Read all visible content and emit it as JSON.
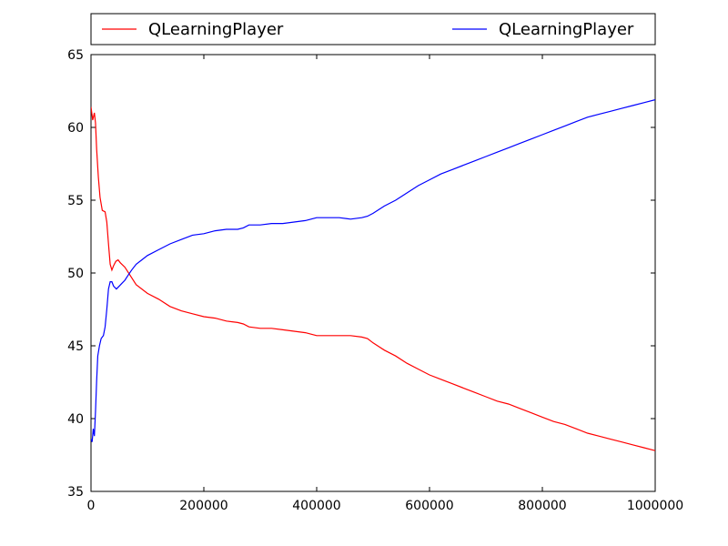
{
  "chart_data": {
    "type": "line",
    "xlim": [
      0,
      1000000
    ],
    "ylim": [
      35,
      65
    ],
    "xticks": [
      0,
      200000,
      400000,
      600000,
      800000,
      1000000
    ],
    "yticks": [
      35,
      40,
      45,
      50,
      55,
      60,
      65
    ],
    "grid": false,
    "legend_position": "top",
    "series": [
      {
        "name": "QLearningPlayer",
        "color": "#ff0000",
        "points": [
          [
            0,
            61.4
          ],
          [
            3000,
            60.5
          ],
          [
            6000,
            61.0
          ],
          [
            8000,
            60.3
          ],
          [
            10000,
            58.5
          ],
          [
            13000,
            56.6
          ],
          [
            16000,
            55.2
          ],
          [
            20000,
            54.3
          ],
          [
            25000,
            54.2
          ],
          [
            28000,
            53.5
          ],
          [
            31000,
            52.0
          ],
          [
            34000,
            50.6
          ],
          [
            37000,
            50.2
          ],
          [
            40000,
            50.5
          ],
          [
            44000,
            50.8
          ],
          [
            48000,
            50.9
          ],
          [
            52000,
            50.7
          ],
          [
            60000,
            50.4
          ],
          [
            70000,
            49.8
          ],
          [
            80000,
            49.2
          ],
          [
            100000,
            48.6
          ],
          [
            120000,
            48.2
          ],
          [
            140000,
            47.7
          ],
          [
            160000,
            47.4
          ],
          [
            180000,
            47.2
          ],
          [
            200000,
            47.0
          ],
          [
            220000,
            46.9
          ],
          [
            240000,
            46.7
          ],
          [
            260000,
            46.6
          ],
          [
            270000,
            46.5
          ],
          [
            280000,
            46.3
          ],
          [
            300000,
            46.2
          ],
          [
            320000,
            46.2
          ],
          [
            340000,
            46.1
          ],
          [
            360000,
            46.0
          ],
          [
            380000,
            45.9
          ],
          [
            390000,
            45.8
          ],
          [
            400000,
            45.7
          ],
          [
            420000,
            45.7
          ],
          [
            440000,
            45.7
          ],
          [
            460000,
            45.7
          ],
          [
            480000,
            45.6
          ],
          [
            490000,
            45.5
          ],
          [
            500000,
            45.2
          ],
          [
            520000,
            44.7
          ],
          [
            540000,
            44.3
          ],
          [
            560000,
            43.8
          ],
          [
            580000,
            43.4
          ],
          [
            600000,
            43.0
          ],
          [
            620000,
            42.7
          ],
          [
            640000,
            42.4
          ],
          [
            660000,
            42.1
          ],
          [
            680000,
            41.8
          ],
          [
            700000,
            41.5
          ],
          [
            720000,
            41.2
          ],
          [
            740000,
            41.0
          ],
          [
            760000,
            40.7
          ],
          [
            780000,
            40.4
          ],
          [
            800000,
            40.1
          ],
          [
            820000,
            39.8
          ],
          [
            840000,
            39.6
          ],
          [
            860000,
            39.3
          ],
          [
            880000,
            39.0
          ],
          [
            900000,
            38.8
          ],
          [
            920000,
            38.6
          ],
          [
            940000,
            38.4
          ],
          [
            960000,
            38.2
          ],
          [
            980000,
            38.0
          ],
          [
            1000000,
            37.8
          ]
        ]
      },
      {
        "name": "QLearningPlayer",
        "color": "#0000ff",
        "points": [
          [
            0,
            38.6
          ],
          [
            2000,
            38.4
          ],
          [
            4000,
            39.3
          ],
          [
            6000,
            38.8
          ],
          [
            8000,
            40.5
          ],
          [
            10000,
            42.6
          ],
          [
            12000,
            44.3
          ],
          [
            15000,
            45.0
          ],
          [
            18000,
            45.5
          ],
          [
            22000,
            45.7
          ],
          [
            25000,
            46.3
          ],
          [
            28000,
            47.5
          ],
          [
            31000,
            48.9
          ],
          [
            34000,
            49.4
          ],
          [
            37000,
            49.4
          ],
          [
            40000,
            49.1
          ],
          [
            45000,
            48.9
          ],
          [
            50000,
            49.1
          ],
          [
            55000,
            49.3
          ],
          [
            60000,
            49.5
          ],
          [
            65000,
            49.8
          ],
          [
            72000,
            50.2
          ],
          [
            80000,
            50.6
          ],
          [
            90000,
            50.9
          ],
          [
            100000,
            51.2
          ],
          [
            120000,
            51.6
          ],
          [
            140000,
            52.0
          ],
          [
            160000,
            52.3
          ],
          [
            180000,
            52.6
          ],
          [
            200000,
            52.7
          ],
          [
            220000,
            52.9
          ],
          [
            240000,
            53.0
          ],
          [
            260000,
            53.0
          ],
          [
            270000,
            53.1
          ],
          [
            280000,
            53.3
          ],
          [
            300000,
            53.3
          ],
          [
            320000,
            53.4
          ],
          [
            340000,
            53.4
          ],
          [
            360000,
            53.5
          ],
          [
            380000,
            53.6
          ],
          [
            390000,
            53.7
          ],
          [
            400000,
            53.8
          ],
          [
            420000,
            53.8
          ],
          [
            440000,
            53.8
          ],
          [
            460000,
            53.7
          ],
          [
            480000,
            53.8
          ],
          [
            490000,
            53.9
          ],
          [
            500000,
            54.1
          ],
          [
            520000,
            54.6
          ],
          [
            540000,
            55.0
          ],
          [
            560000,
            55.5
          ],
          [
            580000,
            56.0
          ],
          [
            600000,
            56.4
          ],
          [
            620000,
            56.8
          ],
          [
            640000,
            57.1
          ],
          [
            660000,
            57.4
          ],
          [
            680000,
            57.7
          ],
          [
            700000,
            58.0
          ],
          [
            720000,
            58.3
          ],
          [
            740000,
            58.6
          ],
          [
            760000,
            58.9
          ],
          [
            780000,
            59.2
          ],
          [
            800000,
            59.5
          ],
          [
            820000,
            59.8
          ],
          [
            840000,
            60.1
          ],
          [
            860000,
            60.4
          ],
          [
            880000,
            60.7
          ],
          [
            900000,
            60.9
          ],
          [
            920000,
            61.1
          ],
          [
            940000,
            61.3
          ],
          [
            960000,
            61.5
          ],
          [
            980000,
            61.7
          ],
          [
            1000000,
            61.9
          ]
        ]
      }
    ]
  }
}
